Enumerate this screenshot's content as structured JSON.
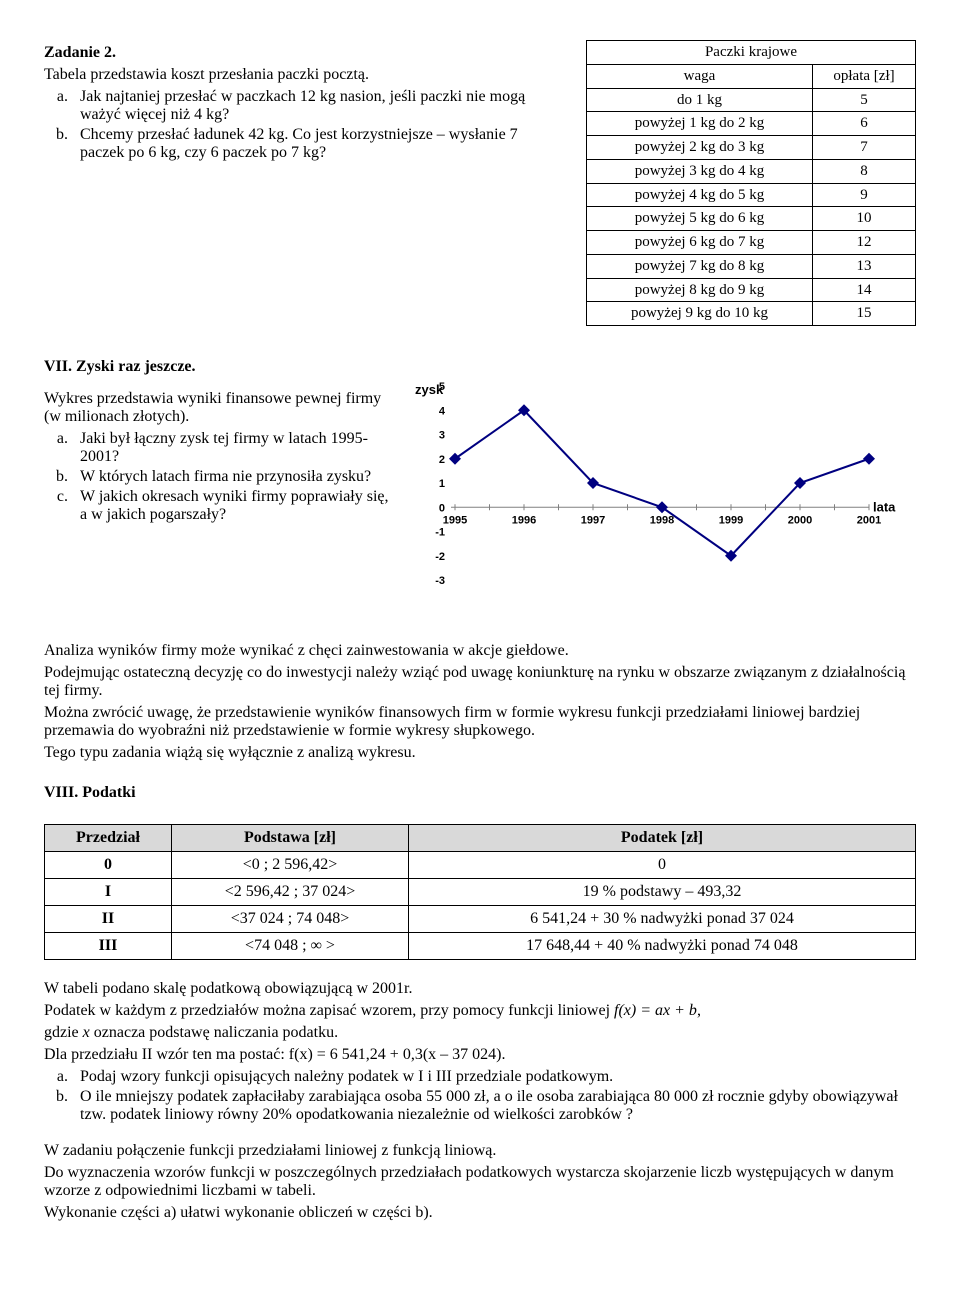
{
  "zad2": {
    "title": "Zadanie 2.",
    "intro": "Tabela przedstawia koszt przesłania paczki pocztą.",
    "a": "Jak najtaniej przesłać w paczkach 12 kg nasion, jeśli paczki nie mogą ważyć więcej niż 4 kg?",
    "b": "Chcemy przesłać ładunek 42 kg. Co jest korzystniejsze – wysłanie 7 paczek po 6 kg, czy 6 paczek po 7 kg?"
  },
  "paczki": {
    "title": "Paczki krajowe",
    "h1": "waga",
    "h2": "opłata [zł]",
    "rows": [
      {
        "w": "do 1 kg",
        "o": "5"
      },
      {
        "w": "powyżej 1 kg do 2 kg",
        "o": "6"
      },
      {
        "w": "powyżej 2 kg do 3 kg",
        "o": "7"
      },
      {
        "w": "powyżej 3 kg do 4 kg",
        "o": "8"
      },
      {
        "w": "powyżej 4 kg do 5 kg",
        "o": "9"
      },
      {
        "w": "powyżej 5 kg do 6 kg",
        "o": "10"
      },
      {
        "w": "powyżej 6 kg do 7 kg",
        "o": "12"
      },
      {
        "w": "powyżej 7 kg do 8 kg",
        "o": "13"
      },
      {
        "w": "powyżej 8 kg do 9 kg",
        "o": "14"
      },
      {
        "w": "powyżej 9 kg do 10 kg",
        "o": "15"
      }
    ]
  },
  "vii": {
    "title": "VII.  Zyski raz jeszcze.",
    "intro1": "Wykres przedstawia wyniki finansowe pewnej firmy (w milionach złotych).",
    "a": "Jaki był łączny zysk tej firmy w latach 1995-2001?",
    "b": "W których latach firma nie przynosiła zysku?",
    "c": "W jakich okresach wyniki firmy poprawiały się, a w jakich pogarszały?"
  },
  "chart": {
    "type": "line",
    "ylabel": "zysk",
    "xlabel": "lata",
    "ylim": [
      -3,
      5
    ],
    "yticks": [
      -3,
      -2,
      -1,
      0,
      1,
      2,
      3,
      4,
      5
    ],
    "xlabels": [
      "1995",
      "1996",
      "1997",
      "1998",
      "1999",
      "2000",
      "2001"
    ],
    "values": [
      2,
      4,
      1,
      0,
      -2,
      1,
      2
    ],
    "bg": "#ffffff",
    "grid_color": "#c0c0c0",
    "zero_color": "#808080",
    "line_color": "#000080",
    "marker_color": "#000080",
    "marker_size": 6,
    "label_fontsize": 11,
    "title_weight": "bold",
    "font": "Arial,Helvetica,sans-serif"
  },
  "analysis": {
    "p1": "Analiza wyników firmy może wynikać z chęci zainwestowania w akcje giełdowe.",
    "p2": "Podejmując ostateczną decyzję co do inwestycji należy wziąć pod uwagę koniunkturę na rynku w obszarze związanym z działalnością tej firmy.",
    "p3": "Można zwrócić uwagę, że przedstawienie wyników finansowych firm w formie wykresu funkcji przedziałami liniowej bardziej przemawia do wyobraźni niż przedstawienie w formie wykresy słupkowego.",
    "p4": "Tego typu zadania wiążą się wyłącznie z analizą wykresu."
  },
  "viii": {
    "title": "VIII.  Podatki",
    "headers": [
      "Przedział",
      "Podstawa [zł]",
      "Podatek [zł]"
    ],
    "rows": [
      {
        "p": "0",
        "b": "<0 ; 2 596,42>",
        "t": "0"
      },
      {
        "p": "I",
        "b": "<2 596,42 ; 37 024>",
        "t": "19 % podstawy – 493,32"
      },
      {
        "p": "II",
        "b": "<37 024 ; 74 048>",
        "t": "6 541,24 + 30 % nadwyżki ponad 37 024"
      },
      {
        "p": "III",
        "b": "<74 048 ; ∞ >",
        "t": "17 648,44 + 40 % nadwyżki ponad 74 048"
      }
    ],
    "after1": "W tabeli podano skalę podatkową obowiązującą w 2001r.",
    "after2a": "Podatek w każdym z przedziałów można zapisać wzorem, przy pomocy funkcji liniowej  ",
    "after2f": "f(x) = ax + b",
    "after2b": ",",
    "after3a": "gdzie ",
    "after3x": "x",
    "after3b": " oznacza podstawę naliczania podatku.",
    "after4": "Dla przedziału II  wzór ten ma postać: f(x) = 6 541,24 + 0,3(x – 37 024).",
    "qa": "Podaj wzory funkcji opisujących należny podatek w I i  III przedziale podatkowym.",
    "qb": "O ile mniejszy podatek zapłaciłaby zarabiająca osoba 55 000 zł, a o ile osoba  zarabiająca 80 000 zł rocznie gdyby obowiązywał tzw. podatek liniowy równy 20% opodatkowania niezależnie od wielkości zarobków ?",
    "end1": "W zadaniu połączenie funkcji przedziałami liniowej z funkcją liniową.",
    "end2": "Do wyznaczenia wzorów funkcji w poszczególnych przedziałach podatkowych wystarcza skojarzenie liczb występujących w danym wzorze z odpowiednimi liczbami w tabeli.",
    "end3": "Wykonanie części a) ułatwi wykonanie obliczeń w części b)."
  }
}
